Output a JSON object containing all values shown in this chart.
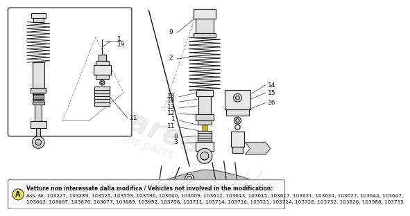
{
  "background_color": "#ffffff",
  "watermark_text1": "eurospares",
  "watermark_text2": "a passion for parts",
  "note_circle_label": "A",
  "note_line1": "Vetture non interessate dalla modifica / Vehicles not involved in the modification:",
  "note_line2": "Ass. Nr. 103227, 103289, 103525, 103553, 103596, 103600, 103609, 103612, 103613, 103615, 103617, 103621, 103624, 103627, 103644, 103647,",
  "note_line3": "103663, 103667, 103676, 103677, 103689, 103692, 103708, 103711, 103714, 103716, 103721, 103724, 103728, 103732, 103826, 103988, 103735",
  "line_color": "#1a1a1a",
  "label_fontsize": 6.5,
  "note_fontsize": 5.2
}
